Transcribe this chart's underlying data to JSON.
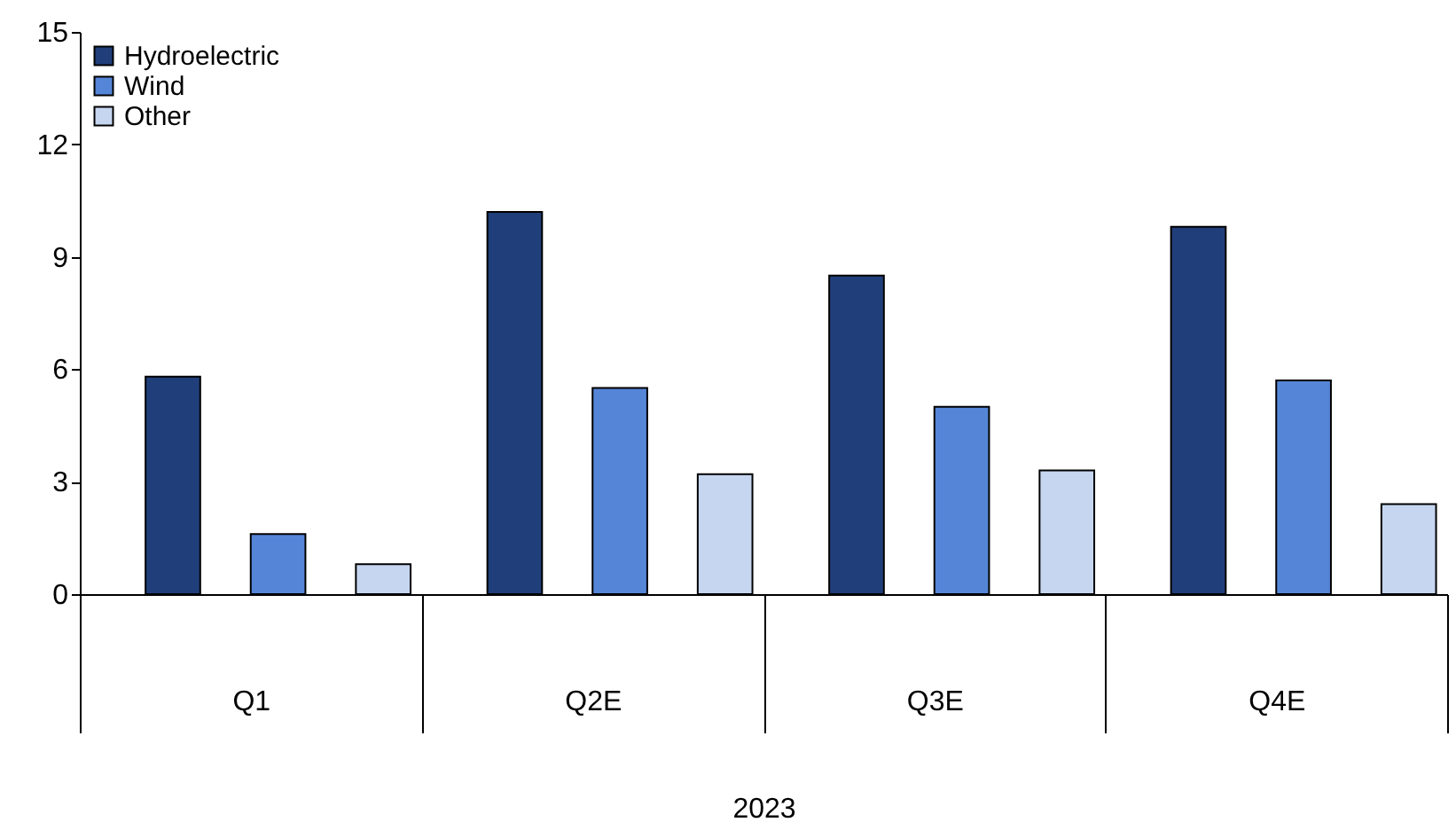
{
  "chart_data": {
    "type": "bar",
    "categories": [
      "Q1",
      "Q2E",
      "Q3E",
      "Q4E"
    ],
    "xlabel": "2023",
    "series": [
      {
        "name": "Hydroelectric",
        "color": "#203f7a",
        "values": [
          5.8,
          10.2,
          8.5,
          9.8
        ]
      },
      {
        "name": "Wind",
        "color": "#5585d6",
        "values": [
          1.6,
          5.5,
          5.0,
          5.7
        ]
      },
      {
        "name": "Other",
        "color": "#c6d6f0",
        "values": [
          0.8,
          3.2,
          3.3,
          2.4
        ]
      }
    ],
    "ylim": [
      0,
      15
    ],
    "yticks": [
      0,
      3,
      6,
      9,
      12,
      15
    ],
    "grid": false,
    "legend": "top left"
  }
}
